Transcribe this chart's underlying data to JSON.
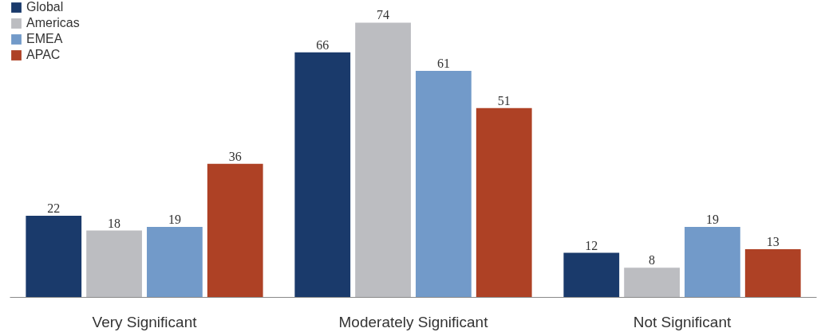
{
  "chart_data": {
    "type": "bar",
    "categories": [
      "Very Significant",
      "Moderately Significant",
      "Not Significant"
    ],
    "series": [
      {
        "name": "Global",
        "color": "#1a3a6b",
        "values": [
          22,
          66,
          12
        ]
      },
      {
        "name": "Americas",
        "color": "#bcbdc1",
        "values": [
          18,
          74,
          8
        ]
      },
      {
        "name": "EMEA",
        "color": "#729ac9",
        "values": [
          19,
          61,
          19
        ]
      },
      {
        "name": "APAC",
        "color": "#ae4125",
        "values": [
          36,
          51,
          13
        ]
      }
    ],
    "ylim": [
      0,
      80
    ],
    "data_labels": true,
    "grid": false,
    "legend": "top left",
    "tick_labels": "x"
  }
}
